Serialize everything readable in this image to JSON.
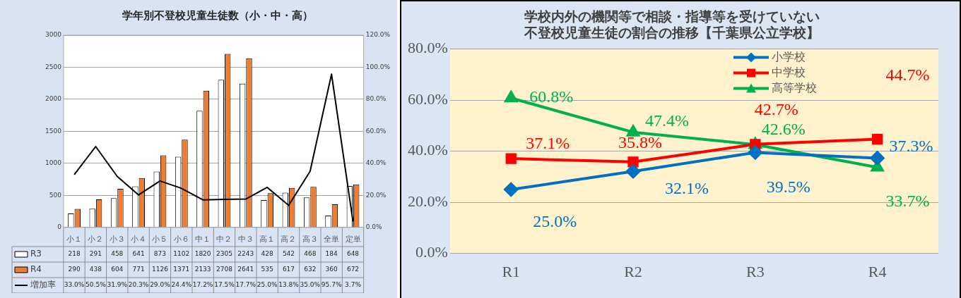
{
  "chart_data": [
    {
      "type": "bar",
      "title": "学年別不登校児童生徒数（小・中・高）",
      "categories": [
        "小１",
        "小２",
        "小３",
        "小４",
        "小５",
        "小６",
        "中１",
        "中２",
        "中３",
        "高１",
        "高２",
        "高３",
        "全単",
        "定単"
      ],
      "series": [
        {
          "name": "R3",
          "color": "#ffffff",
          "values": [
            218,
            291,
            458,
            641,
            873,
            1102,
            1820,
            2305,
            2243,
            428,
            542,
            468,
            184,
            648
          ],
          "value_labels": [
            "218",
            "291",
            "458",
            "641",
            "873",
            "1102",
            "1820",
            "2305",
            "2243",
            "428",
            "542",
            "468",
            "184",
            "648"
          ]
        },
        {
          "name": "R4",
          "color": "#ed7d31",
          "values": [
            290,
            438,
            604,
            771,
            1126,
            1371,
            2133,
            2708,
            2641,
            535,
            617,
            632,
            360,
            672
          ],
          "value_labels": [
            "290",
            "438",
            "604",
            "771",
            "1126",
            "1371",
            "2133",
            "2708",
            "2641",
            "535",
            "617",
            "632",
            "360",
            "672"
          ]
        },
        {
          "name": "増加率",
          "type": "line",
          "axis": "y2",
          "color": "#000000",
          "values": [
            33.0,
            50.5,
            31.9,
            20.3,
            29.0,
            24.4,
            17.2,
            17.5,
            17.7,
            25.0,
            13.8,
            35.0,
            95.7,
            3.7
          ],
          "value_labels": [
            "33.0%",
            "50.5%",
            "31.9%",
            "20.3%",
            "29.0%",
            "24.4%",
            "17.2%",
            "17.5%",
            "17.7%",
            "25.0%",
            "13.8%",
            "35.0%",
            "95.7%",
            "3.7%"
          ]
        }
      ],
      "ylim": [
        0,
        3000
      ],
      "yticks": [
        0,
        500,
        1000,
        1500,
        2000,
        2500,
        3000
      ],
      "y2lim": [
        0,
        120
      ],
      "y2ticks": [
        {
          "value": 0,
          "label": "0.0%"
        },
        {
          "value": 20,
          "label": "20.0%"
        },
        {
          "value": 40,
          "label": "40.0%"
        },
        {
          "value": 60,
          "label": "60.0%"
        },
        {
          "value": 80,
          "label": "80.0%"
        },
        {
          "value": 100,
          "label": "100.0%"
        },
        {
          "value": 120,
          "label": "120.0%"
        }
      ],
      "grid": "y",
      "legend": "bottom left",
      "marker": "none"
    },
    {
      "type": "line",
      "title": "学校内外の機関等で相談・指導等を受けていない不登校児童生徒の割合の推移【千葉県公立学校】",
      "categories": [
        "R1",
        "R2",
        "R3",
        "R4"
      ],
      "series": [
        {
          "name": "小学校",
          "color": "#0070c0",
          "marker": "diamond",
          "values": [
            25.0,
            32.1,
            39.5,
            37.3
          ],
          "value_labels": [
            "25.0%",
            "32.1%",
            "39.5%",
            "37.3%"
          ]
        },
        {
          "name": "中学校",
          "color": "#ff0000",
          "marker": "square",
          "values": [
            37.1,
            35.8,
            42.7,
            44.7
          ],
          "value_labels": [
            "37.1%",
            "35.8%",
            "42.7%",
            "44.7%"
          ]
        },
        {
          "name": "高等学校",
          "color": "#00b050",
          "marker": "triangle",
          "values": [
            60.8,
            47.4,
            42.6,
            33.7
          ],
          "value_labels": [
            "60.8%",
            "47.4%",
            "42.6%",
            "33.7%"
          ]
        }
      ],
      "ylim": [
        0,
        80
      ],
      "yticks": [
        {
          "value": 0,
          "label": "0.0%"
        },
        {
          "value": 20,
          "label": "20.0%"
        },
        {
          "value": 40,
          "label": "40.0%"
        },
        {
          "value": 60,
          "label": "60.0%"
        },
        {
          "value": 80,
          "label": "80.0%"
        }
      ],
      "grid": "y",
      "legend": "top right"
    }
  ]
}
